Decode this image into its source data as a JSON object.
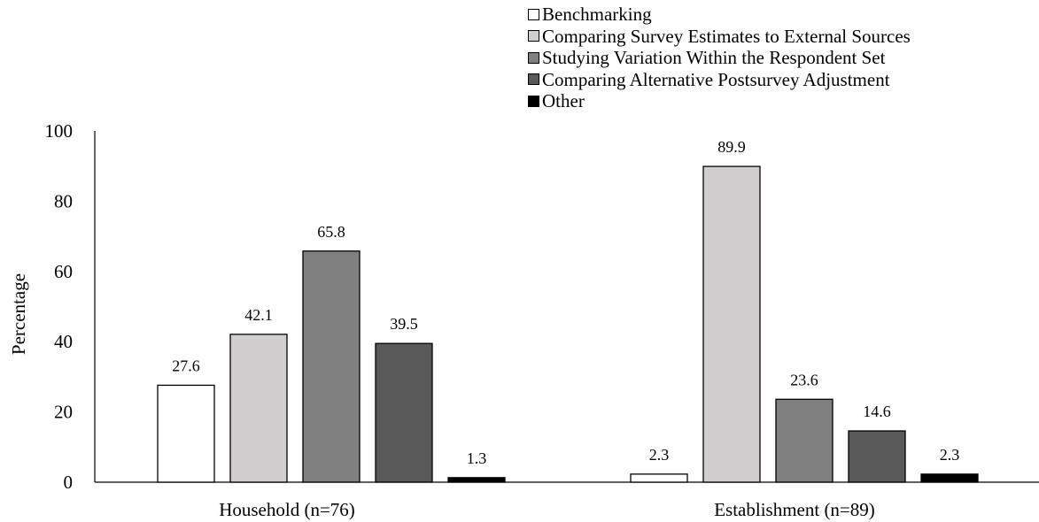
{
  "chart_data": {
    "type": "bar",
    "title": "",
    "xlabel": "",
    "ylabel": "Percentage",
    "ylim": [
      0,
      100
    ],
    "yticks": [
      "0",
      "20",
      "40",
      "60",
      "80",
      "100"
    ],
    "grid": false,
    "legend_position": "top-right",
    "categories": [
      "Household (n=76)",
      "Establishment (n=89)"
    ],
    "series": [
      {
        "name": "Benchmarking",
        "color": "#ffffff",
        "values": [
          27.6,
          2.3
        ],
        "labels": [
          "27.6",
          "2.3"
        ]
      },
      {
        "name": "Comparing Survey Estimates to External Sources",
        "color": "#d0cece",
        "values": [
          42.1,
          89.9
        ],
        "labels": [
          "42.1",
          "89.9"
        ]
      },
      {
        "name": "Studying Variation Within the Respondent Set",
        "color": "#808080",
        "values": [
          65.8,
          23.6
        ],
        "labels": [
          "65.8",
          "23.6"
        ]
      },
      {
        "name": "Comparing Alternative Postsurvey Adjustment",
        "color": "#595959",
        "values": [
          39.5,
          14.6
        ],
        "labels": [
          "39.5",
          "14.6"
        ]
      },
      {
        "name": "Other",
        "color": "#000000",
        "values": [
          1.3,
          2.3
        ],
        "labels": [
          "1.3",
          "2.3"
        ]
      }
    ]
  }
}
